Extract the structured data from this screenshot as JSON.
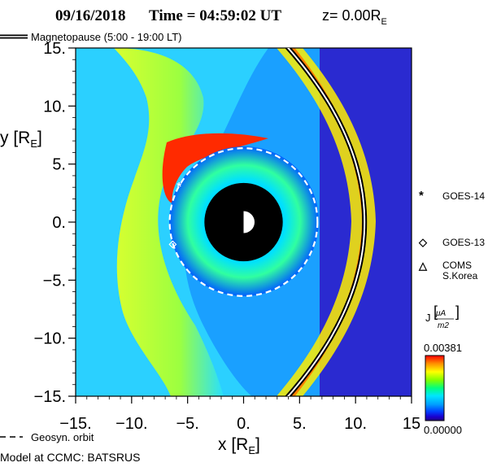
{
  "title": {
    "date": "09/16/2018",
    "time_text": "Time = 04:59:02 UT",
    "z_text": "z= 0.00R",
    "z_sub": "E"
  },
  "legend_top": {
    "label": "Magnetopause (5:00 - 19:00 LT)"
  },
  "legend_bottom": {
    "label": "Geosyn. orbit"
  },
  "footer": {
    "model": "Model at CCMC: BATSRUS"
  },
  "satellites": [
    {
      "name": "GOES-14",
      "symbol": "*"
    },
    {
      "name": "GOES-13",
      "symbol": "◇"
    },
    {
      "name": "COMS",
      "name2": "S.Korea",
      "symbol": "△"
    }
  ],
  "colorbar": {
    "label": "J",
    "unit_num": "μA",
    "unit_den": "m2",
    "max_label": "0.00381",
    "min_label": "0.00000",
    "stops": [
      "#ff0000",
      "#ff8c00",
      "#ffff00",
      "#7fff00",
      "#00ff7f",
      "#00e5ff",
      "#00a0ff",
      "#0040ff",
      "#1a00d0",
      "#200080"
    ]
  },
  "chart_data": {
    "type": "heatmap",
    "x_axis": {
      "label": "x [R",
      "label_sub": "E",
      "label_end": "]",
      "range": [
        -15,
        15
      ],
      "ticks": [
        -15,
        -10,
        -5,
        0,
        5,
        10,
        15
      ],
      "tick_labels": [
        "−15.",
        "−10.",
        "−5.",
        "0.",
        "5.",
        "10.",
        "15"
      ]
    },
    "y_axis": {
      "label": "y [R",
      "label_sub": "E",
      "label_end": "]",
      "range": [
        -15,
        15
      ],
      "ticks": [
        15,
        10,
        5,
        0,
        -5,
        -10,
        -15
      ],
      "tick_labels": [
        "15.",
        "10.",
        "5.",
        "0.",
        "−5.",
        "−10.",
        "−15."
      ]
    },
    "earth_radius": 3.5,
    "geosync_radius": 6.6,
    "magnetopause_subsolar_x": 10.8,
    "markers": [
      {
        "name": "GOES-14",
        "x": -5.6,
        "y": 3.1
      },
      {
        "name": "GOES-13",
        "x": -6.3,
        "y": -1.8
      }
    ],
    "colors": {
      "background": "#2a26c8",
      "magnetosheath": "#9fdc3a",
      "cusp": "#ff2a00"
    }
  }
}
